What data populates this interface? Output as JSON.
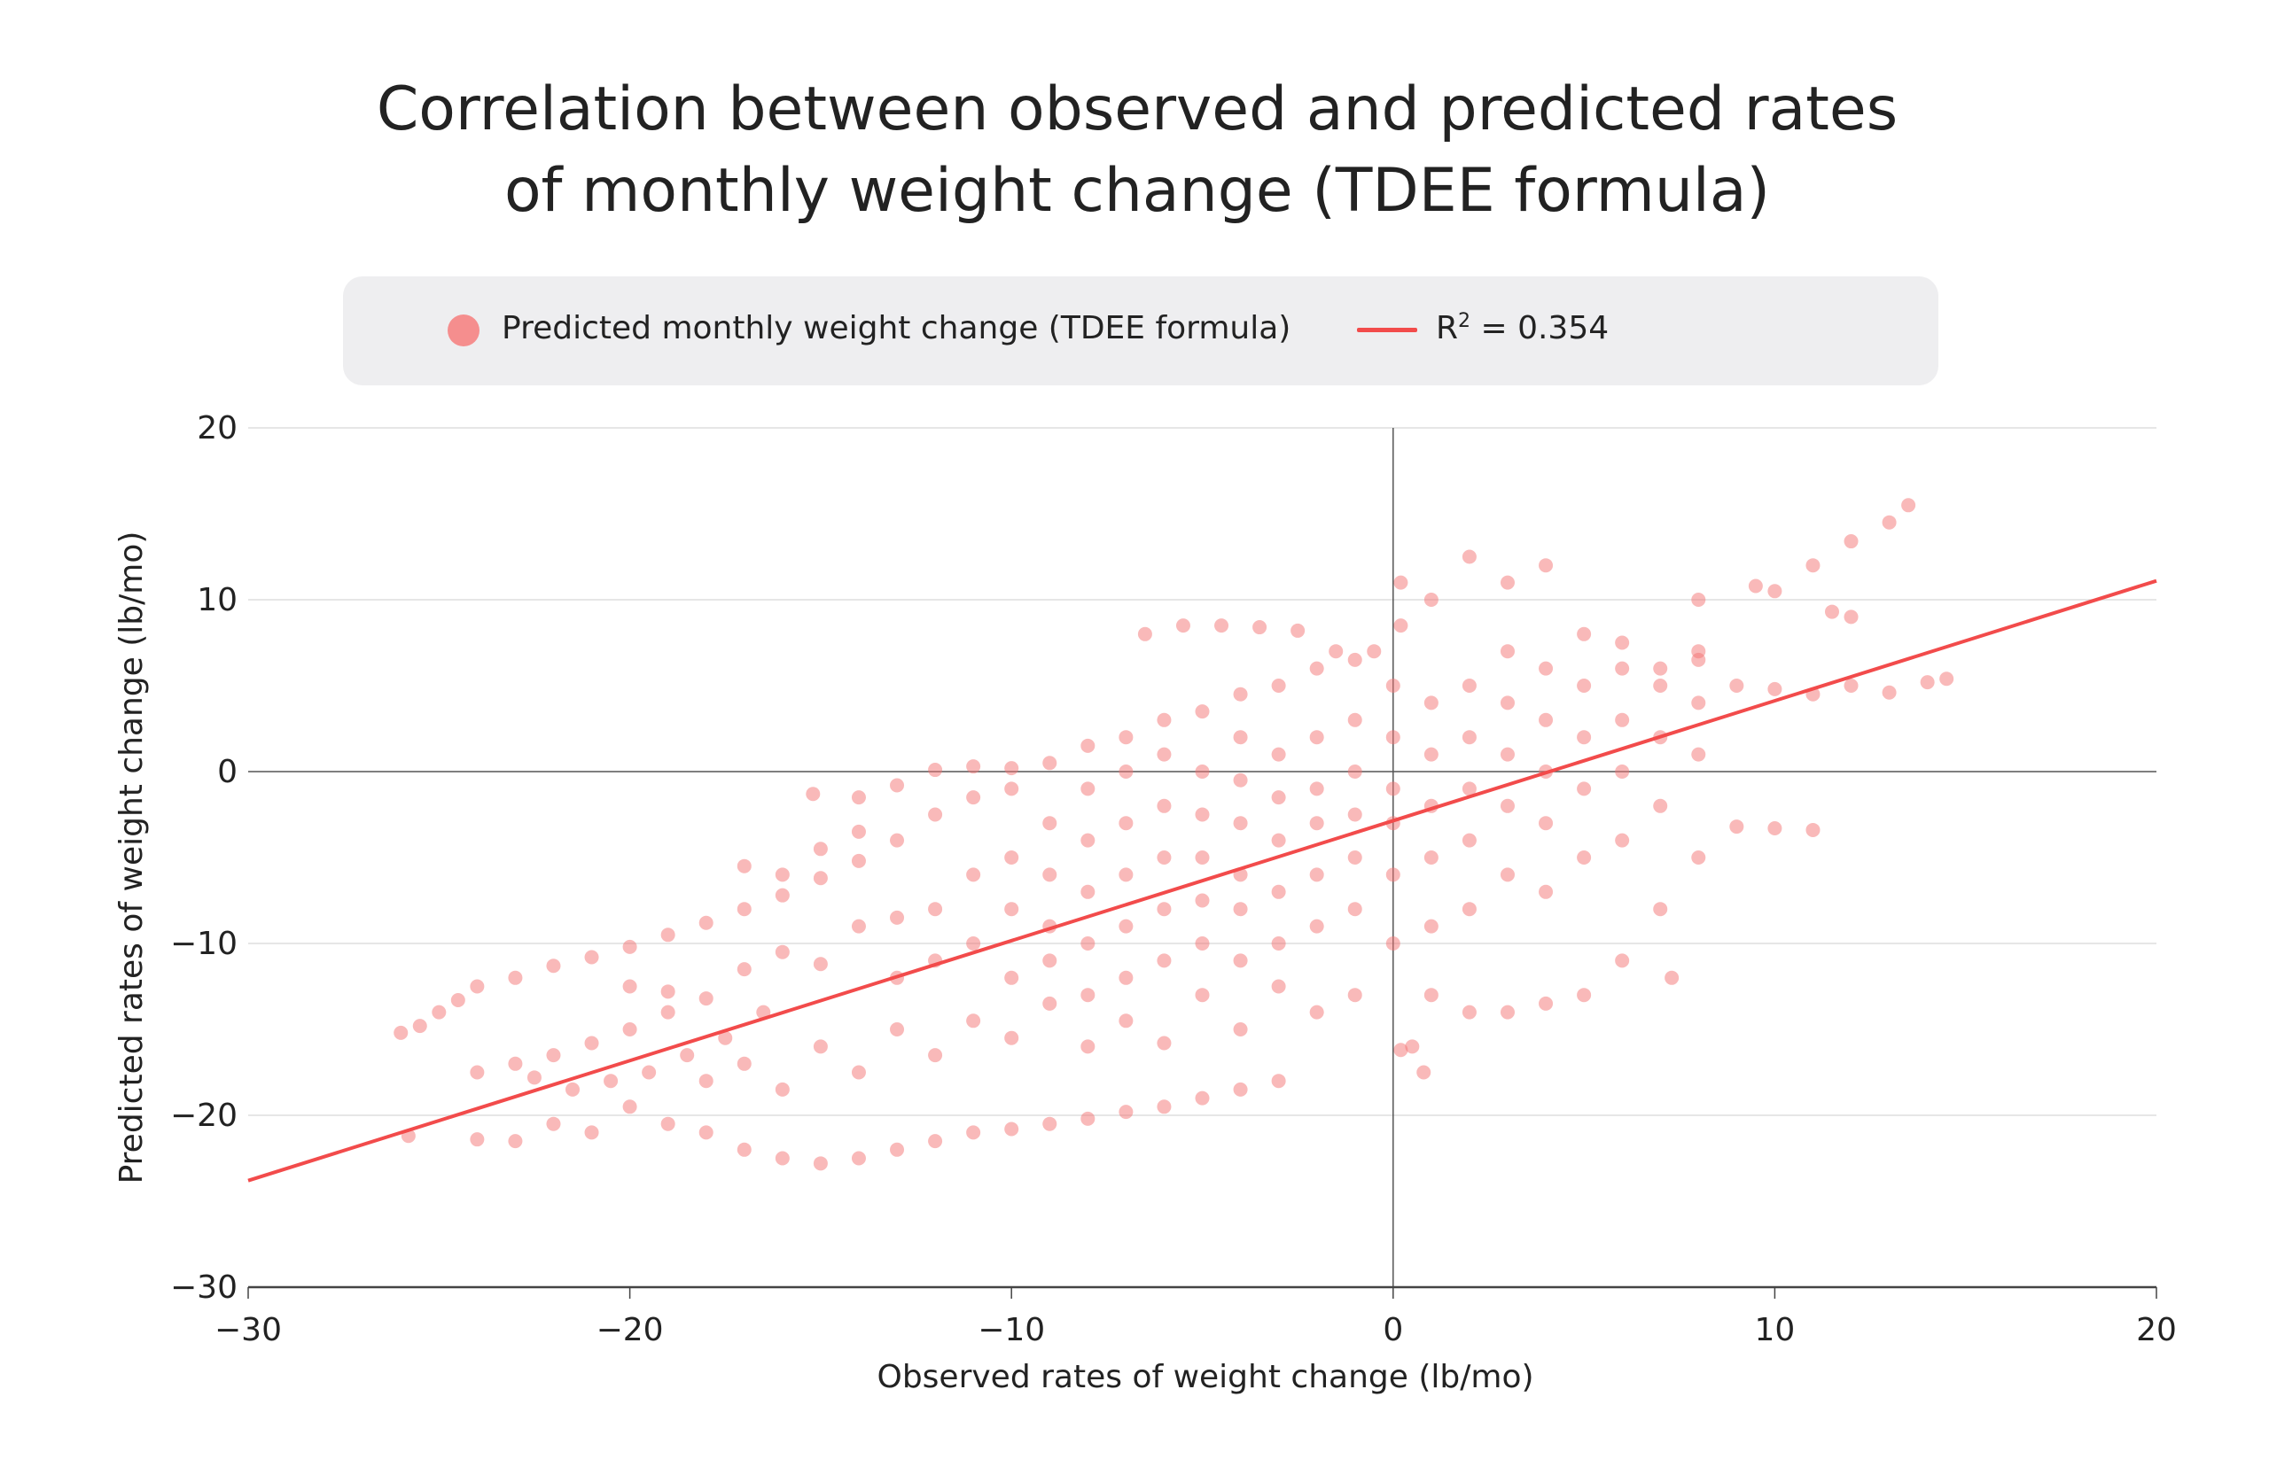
{
  "chart_data": {
    "type": "scatter",
    "title_lines": [
      "Correlation between observed and predicted rates",
      "of monthly weight change (TDEE formula)"
    ],
    "xlabel": "Observed rates of weight change (lb/mo)",
    "ylabel": "Predicted rates of weight change (lb/mo)",
    "xlim": [
      -30,
      20
    ],
    "ylim": [
      -30,
      20
    ],
    "xticks": [
      "-30",
      "-20",
      "-10",
      "0",
      "10",
      "20"
    ],
    "yticks": [
      "-30",
      "-20",
      "-10",
      "0",
      "10",
      "20"
    ],
    "grid": "horizontal",
    "legend_position": "top",
    "legend": {
      "scatter_label": "Predicted monthly weight change (TDEE formula)",
      "line_label_prefix": "R",
      "line_label_sup": "2",
      "line_label_value": " = 0.354"
    },
    "colors": {
      "points": "#f47373",
      "line": "#f24b4b",
      "legend_bg": "#eeeef0"
    },
    "regression": {
      "r2": 0.354,
      "x": [
        -30,
        20
      ],
      "y": [
        -23.8,
        11.1
      ]
    },
    "series": [
      {
        "name": "Predicted monthly weight change (TDEE formula)",
        "points": [
          [
            -26,
            -15.2
          ],
          [
            -25.5,
            -14.8
          ],
          [
            -25,
            -14
          ],
          [
            -24.5,
            -13.3
          ],
          [
            -25.8,
            -21.2
          ],
          [
            -24,
            -21.4
          ],
          [
            -23,
            -21.5
          ],
          [
            -24,
            -12.5
          ],
          [
            -23,
            -12
          ],
          [
            -22,
            -11.3
          ],
          [
            -21,
            -10.8
          ],
          [
            -20,
            -10.2
          ],
          [
            -19,
            -9.5
          ],
          [
            -18,
            -8.8
          ],
          [
            -17,
            -8
          ],
          [
            -16,
            -7.2
          ],
          [
            -15,
            -6.2
          ],
          [
            -14,
            -5.2
          ],
          [
            -15.2,
            -1.3
          ],
          [
            -14,
            -1.5
          ],
          [
            -13,
            -0.8
          ],
          [
            -12,
            0.1
          ],
          [
            -11,
            0.3
          ],
          [
            -10,
            0.2
          ],
          [
            -24,
            -17.5
          ],
          [
            -23,
            -17
          ],
          [
            -22,
            -16.5
          ],
          [
            -21,
            -15.8
          ],
          [
            -20,
            -15
          ],
          [
            -19,
            -14
          ],
          [
            -22.5,
            -17.8
          ],
          [
            -21.5,
            -18.5
          ],
          [
            -20.5,
            -18
          ],
          [
            -19.5,
            -17.5
          ],
          [
            -18.5,
            -16.5
          ],
          [
            -17.5,
            -15.5
          ],
          [
            -16.5,
            -14
          ],
          [
            -20,
            -12.5
          ],
          [
            -19,
            -12.8
          ],
          [
            -18,
            -13.2
          ],
          [
            -17,
            -11.5
          ],
          [
            -16,
            -10.5
          ],
          [
            -15,
            -11.2
          ],
          [
            -14,
            -9
          ],
          [
            -13,
            -8.5
          ],
          [
            -22,
            -20.5
          ],
          [
            -21,
            -21
          ],
          [
            -20,
            -19.5
          ],
          [
            -19,
            -20.5
          ],
          [
            -18,
            -21
          ],
          [
            -17,
            -22
          ],
          [
            -16,
            -22.5
          ],
          [
            -15,
            -22.8
          ],
          [
            -14,
            -22.5
          ],
          [
            -13,
            -22
          ],
          [
            -12,
            -21.5
          ],
          [
            -11,
            -21
          ],
          [
            -10,
            -20.8
          ],
          [
            -9,
            -20.5
          ],
          [
            -8,
            -20.2
          ],
          [
            -7,
            -19.8
          ],
          [
            -6,
            -19.5
          ],
          [
            -5,
            -19
          ],
          [
            -4,
            -18.5
          ],
          [
            -3,
            -18
          ],
          [
            -18,
            -18
          ],
          [
            -17,
            -17
          ],
          [
            -16,
            -18.5
          ],
          [
            -15,
            -16
          ],
          [
            -14,
            -17.5
          ],
          [
            -13,
            -15
          ],
          [
            -12,
            -16.5
          ],
          [
            -11,
            -14.5
          ],
          [
            -10,
            -15.5
          ],
          [
            -9,
            -13.5
          ],
          [
            -8,
            -16
          ],
          [
            -7,
            -14.5
          ],
          [
            -6,
            -15.8
          ],
          [
            -5,
            -13
          ],
          [
            -4,
            -15
          ],
          [
            -3,
            -12.5
          ],
          [
            -2,
            -14
          ],
          [
            -1,
            -13
          ],
          [
            -17,
            -5.5
          ],
          [
            -16,
            -6
          ],
          [
            -15,
            -4.5
          ],
          [
            -14,
            -3.5
          ],
          [
            -13,
            -4
          ],
          [
            -12,
            -2.5
          ],
          [
            -11,
            -1.5
          ],
          [
            -10,
            -1
          ],
          [
            -9,
            0.5
          ],
          [
            -8,
            1.5
          ],
          [
            -7,
            2
          ],
          [
            -6,
            3
          ],
          [
            -5,
            3.5
          ],
          [
            -4,
            4.5
          ],
          [
            -3,
            5
          ],
          [
            -2,
            6
          ],
          [
            -1,
            6.5
          ],
          [
            -13,
            -12
          ],
          [
            -12,
            -11
          ],
          [
            -12,
            -8
          ],
          [
            -11,
            -10
          ],
          [
            -11,
            -6
          ],
          [
            -10,
            -12
          ],
          [
            -10,
            -8
          ],
          [
            -10,
            -5
          ],
          [
            -9,
            -11
          ],
          [
            -9,
            -9
          ],
          [
            -9,
            -6
          ],
          [
            -9,
            -3
          ],
          [
            -8,
            -13
          ],
          [
            -8,
            -10
          ],
          [
            -8,
            -7
          ],
          [
            -8,
            -4
          ],
          [
            -8,
            -1
          ],
          [
            -7,
            -12
          ],
          [
            -7,
            -9
          ],
          [
            -7,
            -6
          ],
          [
            -7,
            -3
          ],
          [
            -7,
            0
          ],
          [
            -6,
            -11
          ],
          [
            -6,
            -8
          ],
          [
            -6,
            -5
          ],
          [
            -6,
            -2
          ],
          [
            -6,
            1
          ],
          [
            -5,
            -10
          ],
          [
            -5,
            -7.5
          ],
          [
            -5,
            -5
          ],
          [
            -5,
            -2.5
          ],
          [
            -5,
            0
          ],
          [
            -4,
            -11
          ],
          [
            -4,
            -8
          ],
          [
            -4,
            -6
          ],
          [
            -4,
            -3
          ],
          [
            -4,
            -0.5
          ],
          [
            -4,
            2
          ],
          [
            -3,
            -10
          ],
          [
            -3,
            -7
          ],
          [
            -3,
            -4
          ],
          [
            -3,
            -1.5
          ],
          [
            -3,
            1
          ],
          [
            -2,
            -9
          ],
          [
            -2,
            -6
          ],
          [
            -2,
            -3
          ],
          [
            -2,
            -1
          ],
          [
            -2,
            2
          ],
          [
            -1,
            -8
          ],
          [
            -1,
            -5
          ],
          [
            -1,
            -2.5
          ],
          [
            -1,
            0
          ],
          [
            -1,
            3
          ],
          [
            0,
            -10
          ],
          [
            0,
            -6
          ],
          [
            0,
            -3
          ],
          [
            0,
            -1
          ],
          [
            0,
            2
          ],
          [
            0,
            5
          ],
          [
            1,
            -9
          ],
          [
            1,
            -5
          ],
          [
            1,
            -2
          ],
          [
            1,
            1
          ],
          [
            1,
            4
          ],
          [
            2,
            -8
          ],
          [
            2,
            -4
          ],
          [
            2,
            -1
          ],
          [
            2,
            2
          ],
          [
            2,
            5
          ],
          [
            3,
            -6
          ],
          [
            3,
            -2
          ],
          [
            3,
            1
          ],
          [
            3,
            4
          ],
          [
            3,
            7
          ],
          [
            4,
            -7
          ],
          [
            4,
            -3
          ],
          [
            4,
            0
          ],
          [
            4,
            3
          ],
          [
            4,
            6
          ],
          [
            5,
            -5
          ],
          [
            5,
            -1
          ],
          [
            5,
            2
          ],
          [
            5,
            5
          ],
          [
            6,
            -4
          ],
          [
            6,
            0
          ],
          [
            6,
            3
          ],
          [
            6,
            6
          ],
          [
            7,
            -2
          ],
          [
            7,
            2
          ],
          [
            7,
            5
          ],
          [
            8,
            1
          ],
          [
            8,
            4
          ],
          [
            8,
            7
          ],
          [
            2,
            12.5
          ],
          [
            3,
            11
          ],
          [
            4,
            12
          ],
          [
            1,
            10
          ],
          [
            0.2,
            11
          ],
          [
            5,
            8
          ],
          [
            6,
            7.5
          ],
          [
            7,
            6
          ],
          [
            8,
            6.5
          ],
          [
            9,
            5
          ],
          [
            10,
            4.8
          ],
          [
            11,
            4.5
          ],
          [
            12,
            5
          ],
          [
            13,
            4.6
          ],
          [
            14,
            5.2
          ],
          [
            14.5,
            5.4
          ],
          [
            13,
            14.5
          ],
          [
            13.5,
            15.5
          ],
          [
            12,
            13.4
          ],
          [
            11,
            12
          ],
          [
            10,
            10.5
          ],
          [
            9.5,
            10.8
          ],
          [
            8,
            10
          ],
          [
            11.5,
            9.3
          ],
          [
            12,
            9
          ],
          [
            9,
            -3.2
          ],
          [
            10,
            -3.3
          ],
          [
            11,
            -3.4
          ],
          [
            8,
            -5
          ],
          [
            7,
            -8
          ],
          [
            7.3,
            -12
          ],
          [
            6,
            -11
          ],
          [
            5,
            -13
          ],
          [
            4,
            -13.5
          ],
          [
            3,
            -14
          ],
          [
            2,
            -14
          ],
          [
            1,
            -13
          ],
          [
            0.5,
            -16
          ],
          [
            0.8,
            -17.5
          ],
          [
            0.2,
            -16.2
          ],
          [
            -6.5,
            8
          ],
          [
            -5.5,
            8.5
          ],
          [
            -4.5,
            8.5
          ],
          [
            -3.5,
            8.4
          ],
          [
            -2.5,
            8.2
          ],
          [
            -1.5,
            7
          ],
          [
            -0.5,
            7
          ],
          [
            0.2,
            8.5
          ]
        ]
      }
    ]
  }
}
